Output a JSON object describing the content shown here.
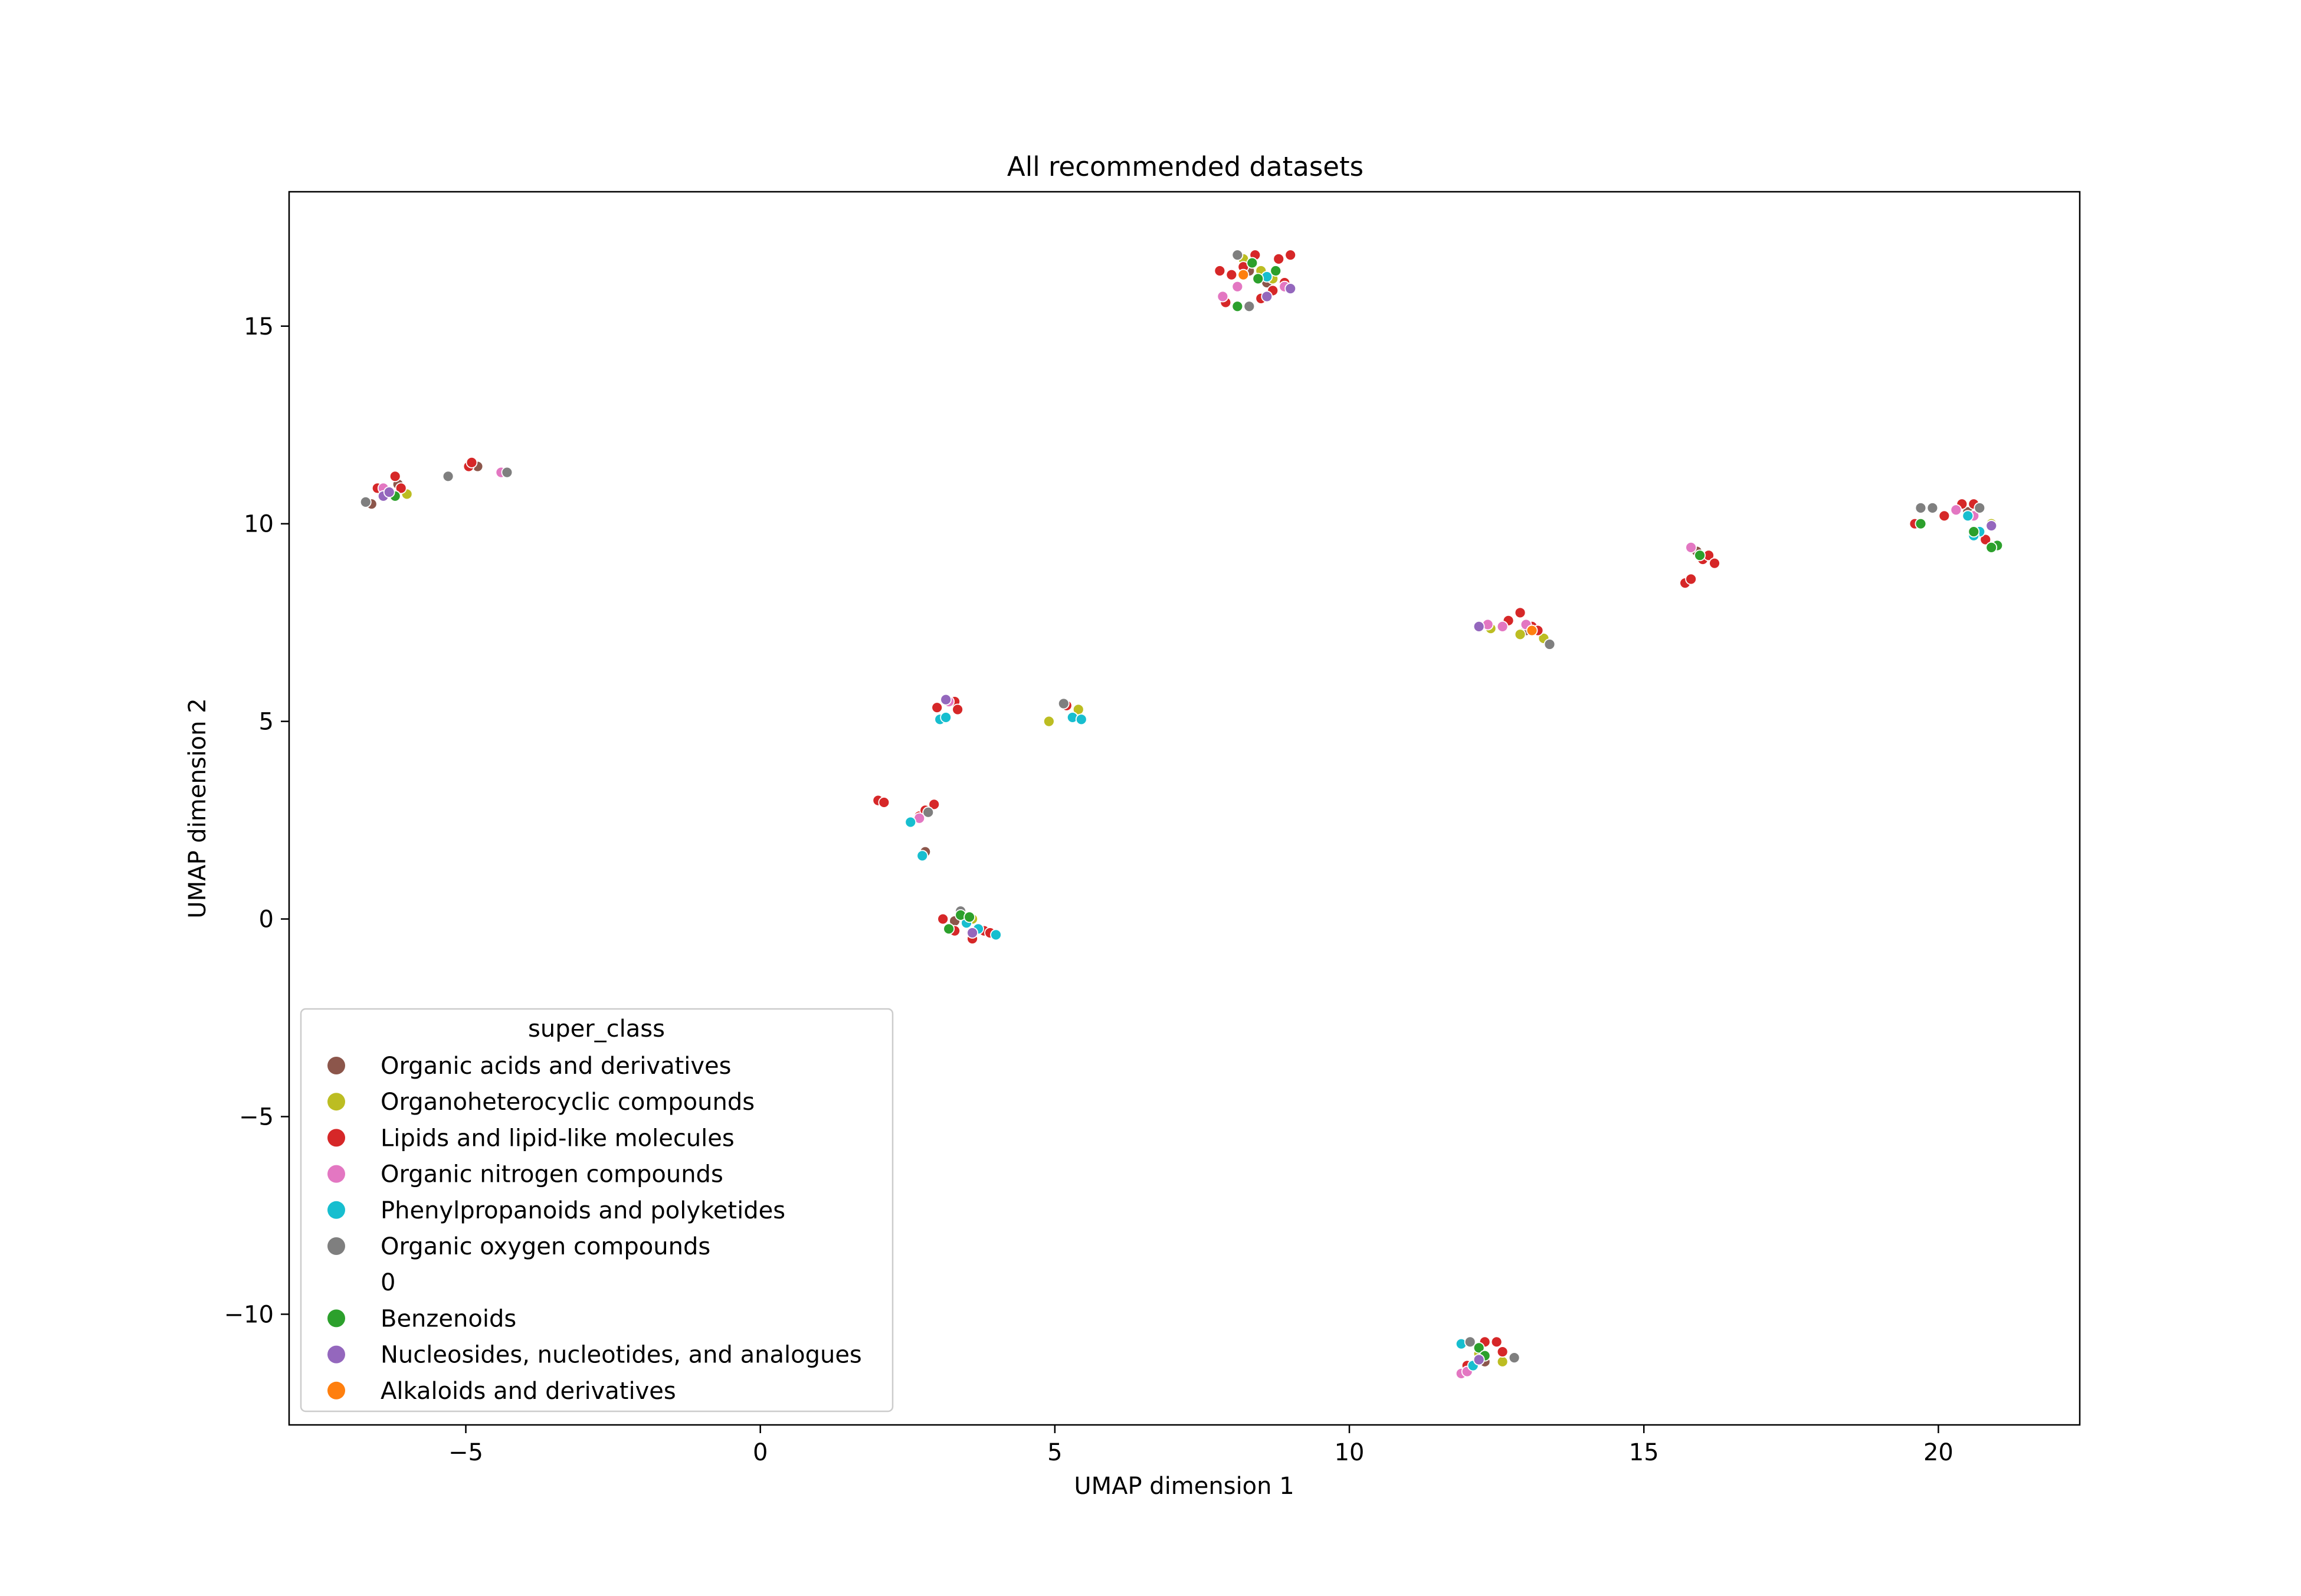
{
  "chart_data": {
    "type": "scatter",
    "title": "All recommended datasets",
    "xlabel": "UMAP dimension 1",
    "ylabel": "UMAP dimension 2",
    "xlim": [
      -8.0,
      22.4
    ],
    "ylim": [
      -12.8,
      18.4
    ],
    "xticks": [
      -5,
      0,
      5,
      10,
      15,
      20
    ],
    "xtick_labels": [
      "−5",
      "0",
      "5",
      "10",
      "15",
      "20"
    ],
    "yticks": [
      -10,
      -5,
      0,
      5,
      10,
      15
    ],
    "ytick_labels": [
      "−10",
      "−5",
      "0",
      "5",
      "10",
      "15"
    ],
    "grid": false,
    "legend": {
      "title": "super_class",
      "placement": "lower-left",
      "entries": [
        {
          "name": "Organic acids and derivatives",
          "color": "#8c564b"
        },
        {
          "name": "Organoheterocyclic compounds",
          "color": "#bcbd22"
        },
        {
          "name": "Lipids and lipid-like molecules",
          "color": "#d62728"
        },
        {
          "name": "Organic nitrogen compounds",
          "color": "#e377c2"
        },
        {
          "name": "Phenylpropanoids and polyketides",
          "color": "#17becf"
        },
        {
          "name": "Organic oxygen compounds",
          "color": "#7f7f7f"
        },
        {
          "name": "0",
          "color": ""
        },
        {
          "name": "Benzenoids",
          "color": "#2ca02c"
        },
        {
          "name": "Nucleosides, nucleotides, and analogues",
          "color": "#9467bd"
        },
        {
          "name": "Alkaloids and derivatives",
          "color": "#ff7f0e"
        }
      ]
    },
    "series": [
      {
        "name": "Organic acids and derivatives",
        "color": "#8c564b",
        "points": [
          [
            -6.6,
            10.5
          ],
          [
            -6.15,
            11.0
          ],
          [
            -4.8,
            11.45
          ],
          [
            3.3,
            -0.05
          ],
          [
            8.3,
            16.4
          ],
          [
            8.6,
            16.1
          ],
          [
            12.3,
            -11.2
          ],
          [
            13.0,
            7.3
          ],
          [
            15.9,
            9.3
          ],
          [
            20.5,
            10.3
          ],
          [
            2.8,
            1.7
          ]
        ]
      },
      {
        "name": "Organoheterocyclic compounds",
        "color": "#bcbd22",
        "points": [
          [
            -6.3,
            10.8
          ],
          [
            -6.0,
            10.75
          ],
          [
            4.9,
            5.0
          ],
          [
            5.4,
            5.3
          ],
          [
            8.2,
            16.7
          ],
          [
            8.5,
            16.4
          ],
          [
            8.7,
            16.2
          ],
          [
            12.4,
            7.35
          ],
          [
            12.9,
            7.2
          ],
          [
            13.3,
            7.1
          ],
          [
            12.2,
            -11.0
          ],
          [
            16.0,
            9.15
          ],
          [
            20.9,
            10.0
          ],
          [
            3.6,
            0.0
          ],
          [
            12.6,
            -11.2
          ]
        ]
      },
      {
        "name": "Lipids and lipid-like molecules",
        "color": "#d62728",
        "points": [
          [
            -6.5,
            10.9
          ],
          [
            -6.2,
            11.2
          ],
          [
            -6.1,
            10.9
          ],
          [
            -4.95,
            11.45
          ],
          [
            -4.9,
            11.55
          ],
          [
            2.0,
            3.0
          ],
          [
            2.1,
            2.95
          ],
          [
            2.7,
            2.6
          ],
          [
            2.8,
            2.75
          ],
          [
            2.95,
            2.9
          ],
          [
            3.3,
            5.5
          ],
          [
            3.35,
            5.3
          ],
          [
            3.1,
            0.0
          ],
          [
            3.3,
            -0.3
          ],
          [
            3.6,
            -0.5
          ],
          [
            3.8,
            -0.3
          ],
          [
            3.9,
            -0.35
          ],
          [
            7.8,
            16.4
          ],
          [
            7.9,
            15.6
          ],
          [
            8.0,
            16.3
          ],
          [
            8.2,
            16.5
          ],
          [
            8.4,
            16.8
          ],
          [
            8.5,
            15.7
          ],
          [
            8.7,
            15.9
          ],
          [
            8.9,
            16.1
          ],
          [
            9.0,
            16.8
          ],
          [
            8.8,
            16.7
          ],
          [
            12.7,
            7.55
          ],
          [
            12.9,
            7.75
          ],
          [
            13.1,
            7.4
          ],
          [
            13.2,
            7.3
          ],
          [
            12.5,
            -10.7
          ],
          [
            12.6,
            -10.95
          ],
          [
            12.3,
            -10.7
          ],
          [
            12.0,
            -11.3
          ],
          [
            15.7,
            8.5
          ],
          [
            15.8,
            8.6
          ],
          [
            16.0,
            9.1
          ],
          [
            16.1,
            9.2
          ],
          [
            16.2,
            9.0
          ],
          [
            19.6,
            10.0
          ],
          [
            20.1,
            10.2
          ],
          [
            20.6,
            10.5
          ],
          [
            20.4,
            10.5
          ],
          [
            20.8,
            9.6
          ],
          [
            5.2,
            5.4
          ],
          [
            3.0,
            5.35
          ]
        ]
      },
      {
        "name": "Organic nitrogen compounds",
        "color": "#e377c2",
        "points": [
          [
            -4.4,
            11.3
          ],
          [
            -6.4,
            10.9
          ],
          [
            3.2,
            5.5
          ],
          [
            7.85,
            15.75
          ],
          [
            8.1,
            16.0
          ],
          [
            8.9,
            16.0
          ],
          [
            12.35,
            7.45
          ],
          [
            12.6,
            7.4
          ],
          [
            13.0,
            7.45
          ],
          [
            11.9,
            -11.5
          ],
          [
            12.0,
            -11.45
          ],
          [
            15.8,
            9.4
          ],
          [
            20.3,
            10.35
          ],
          [
            20.6,
            10.2
          ],
          [
            2.7,
            2.55
          ]
        ]
      },
      {
        "name": "Phenylpropanoids and polyketides",
        "color": "#17becf",
        "points": [
          [
            3.05,
            5.05
          ],
          [
            3.15,
            5.1
          ],
          [
            5.3,
            5.1
          ],
          [
            5.45,
            5.05
          ],
          [
            2.55,
            2.45
          ],
          [
            2.75,
            1.6
          ],
          [
            3.5,
            -0.1
          ],
          [
            3.7,
            -0.25
          ],
          [
            4.0,
            -0.4
          ],
          [
            11.9,
            -10.75
          ],
          [
            12.1,
            -11.3
          ],
          [
            20.7,
            9.8
          ],
          [
            20.6,
            9.7
          ],
          [
            20.5,
            10.2
          ],
          [
            8.6,
            16.25
          ]
        ]
      },
      {
        "name": "Organic oxygen compounds",
        "color": "#7f7f7f",
        "points": [
          [
            -6.7,
            10.55
          ],
          [
            -5.3,
            11.2
          ],
          [
            -4.3,
            11.3
          ],
          [
            3.4,
            0.2
          ],
          [
            8.3,
            15.5
          ],
          [
            8.1,
            16.8
          ],
          [
            13.4,
            6.95
          ],
          [
            12.8,
            -11.1
          ],
          [
            12.05,
            -10.7
          ],
          [
            19.7,
            10.4
          ],
          [
            19.9,
            10.4
          ],
          [
            20.7,
            10.4
          ],
          [
            2.85,
            2.7
          ],
          [
            5.15,
            5.45
          ]
        ]
      },
      {
        "name": "Benzenoids",
        "color": "#2ca02c",
        "points": [
          [
            -6.2,
            10.7
          ],
          [
            3.4,
            0.1
          ],
          [
            3.55,
            0.05
          ],
          [
            3.2,
            -0.25
          ],
          [
            8.1,
            15.5
          ],
          [
            8.35,
            16.6
          ],
          [
            8.45,
            16.2
          ],
          [
            8.75,
            16.4
          ],
          [
            12.2,
            -10.85
          ],
          [
            12.3,
            -11.05
          ],
          [
            19.7,
            10.0
          ],
          [
            21.0,
            9.45
          ],
          [
            20.9,
            9.4
          ],
          [
            20.6,
            9.8
          ],
          [
            15.95,
            9.2
          ]
        ]
      },
      {
        "name": "Nucleosides, nucleotides, and analogues",
        "color": "#9467bd",
        "points": [
          [
            -6.4,
            10.7
          ],
          [
            -6.3,
            10.8
          ],
          [
            3.15,
            5.55
          ],
          [
            3.6,
            -0.35
          ],
          [
            8.6,
            15.75
          ],
          [
            9.0,
            15.95
          ],
          [
            12.2,
            7.4
          ],
          [
            12.2,
            -11.15
          ],
          [
            20.9,
            9.95
          ]
        ]
      },
      {
        "name": "Alkaloids and derivatives",
        "color": "#ff7f0e",
        "points": [
          [
            13.1,
            7.3
          ],
          [
            8.2,
            16.3
          ]
        ]
      }
    ]
  }
}
